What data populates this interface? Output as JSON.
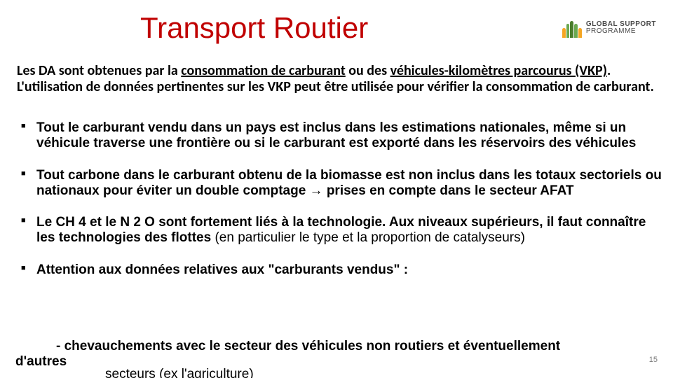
{
  "title": "Transport Routier",
  "logo": {
    "line1": "GLOBAL SUPPORT",
    "line2": "PROGRAMME"
  },
  "intro": {
    "p1_a": "Les DA sont obtenues par la ",
    "p1_u1": "consommation de carburant",
    "p1_b": " ou des ",
    "p1_u2": "véhicules-kilomètres parcourus (VKP)",
    "p1_c": ". L'utilisation de données pertinentes sur les VKP peut être utilisée pour vérifier la consommation de carburant."
  },
  "bullets": {
    "b1": "Tout le carburant vendu dans un pays est inclus dans les estimations nationales, même si un véhicule traverse une frontière ou si le carburant est exporté dans les réservoirs des véhicules",
    "b2": "Tout carbone dans le carburant obtenu de la biomasse est non inclus dans les totaux sectoriels ou nationaux pour éviter un double comptage → prises en compte dans le secteur AFAT",
    "b3_a": "Le CH 4 et le N 2 O sont fortement liés à la technologie. Aux niveaux supérieurs, il faut connaître les technologies des flottes ",
    "b3_b": "(en particulier le type et la proportion de catalyseurs)",
    "b4": "Attention aux données relatives aux \"carburants vendus\" :"
  },
  "sub": {
    "line1_dash": "- chevauchements avec le secteur des véhicules non routiers et éventuellement",
    "line2": "d'autres"
  },
  "cutoff": "secteurs (ex  l'agriculture)",
  "page": "15",
  "colors": {
    "title": "#c00000",
    "text": "#000000",
    "page": "#7a7a7a",
    "bg": "#ffffff"
  }
}
